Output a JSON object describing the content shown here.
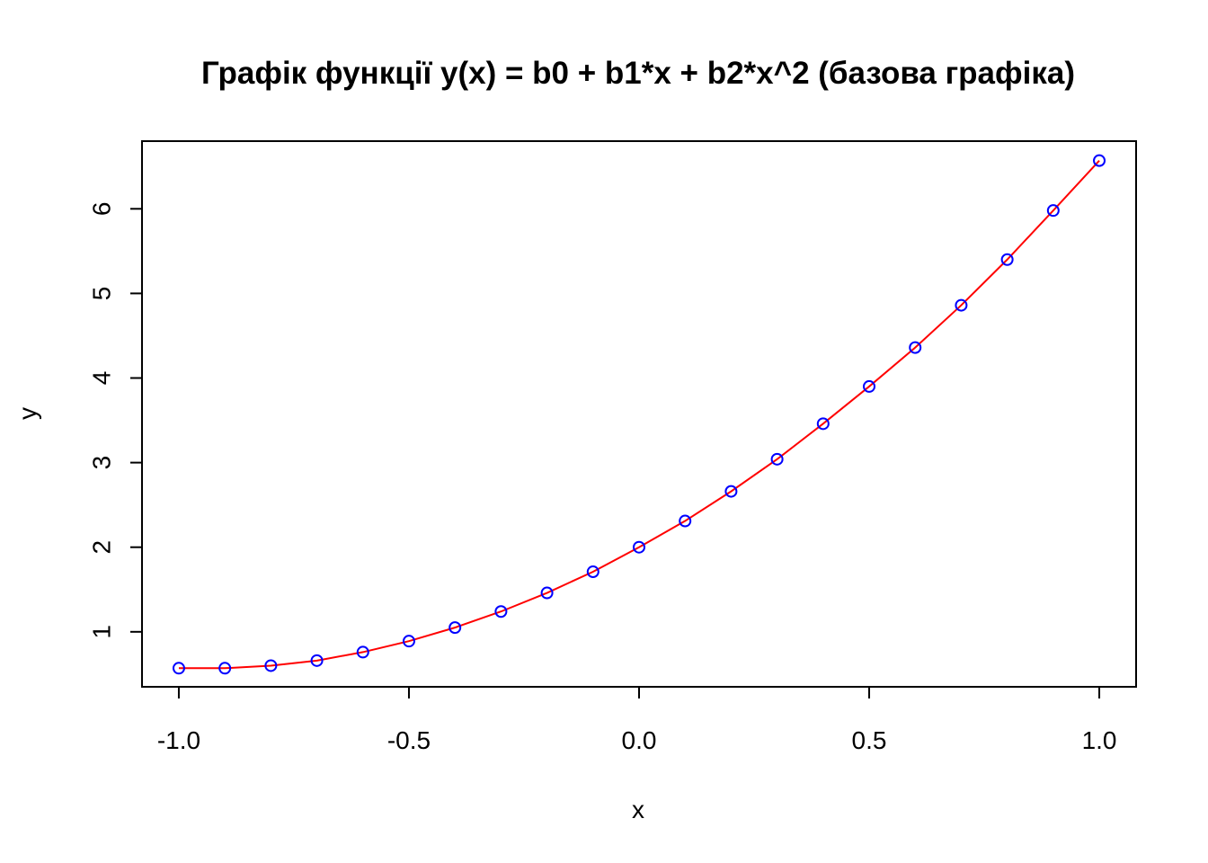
{
  "chart_data": {
    "type": "line",
    "title": "Графік функції y(x) = b0 + b1*x + b2*x^2 (базова графіка)",
    "xlabel": "x",
    "ylabel": "y",
    "xlim": [
      -1.08,
      1.08
    ],
    "ylim": [
      0.35,
      6.8
    ],
    "x_ticks": [
      -1.0,
      -0.5,
      0.0,
      0.5,
      1.0
    ],
    "x_tick_labels": [
      "-1.0",
      "-0.5",
      "0.0",
      "0.5",
      "1.0"
    ],
    "y_ticks": [
      1,
      2,
      3,
      4,
      5,
      6
    ],
    "y_tick_labels": [
      "1",
      "2",
      "3",
      "4",
      "5",
      "6"
    ],
    "grid": false,
    "legend": "none",
    "series": [
      {
        "style": "line",
        "color": "#ff0000",
        "x": [
          -1.0,
          -0.9,
          -0.8,
          -0.7,
          -0.6,
          -0.5,
          -0.4,
          -0.3,
          -0.2,
          -0.1,
          0.0,
          0.1,
          0.2,
          0.3,
          0.4,
          0.5,
          0.6,
          0.7,
          0.8,
          0.9,
          1.0
        ],
        "y": [
          0.57,
          0.57,
          0.6,
          0.66,
          0.76,
          0.89,
          1.05,
          1.24,
          1.46,
          1.71,
          2.0,
          2.31,
          2.66,
          3.04,
          3.46,
          3.9,
          4.36,
          4.86,
          5.4,
          5.98,
          6.57
        ]
      },
      {
        "style": "points",
        "marker": "open-circle",
        "color": "#0000ff",
        "x": [
          -1.0,
          -0.9,
          -0.8,
          -0.7,
          -0.6,
          -0.5,
          -0.4,
          -0.3,
          -0.2,
          -0.1,
          0.0,
          0.1,
          0.2,
          0.3,
          0.4,
          0.5,
          0.6,
          0.7,
          0.8,
          0.9,
          1.0
        ],
        "y": [
          0.57,
          0.57,
          0.6,
          0.66,
          0.76,
          0.89,
          1.05,
          1.24,
          1.46,
          1.71,
          2.0,
          2.31,
          2.66,
          3.04,
          3.46,
          3.9,
          4.36,
          4.86,
          5.4,
          5.98,
          6.57
        ]
      }
    ]
  }
}
